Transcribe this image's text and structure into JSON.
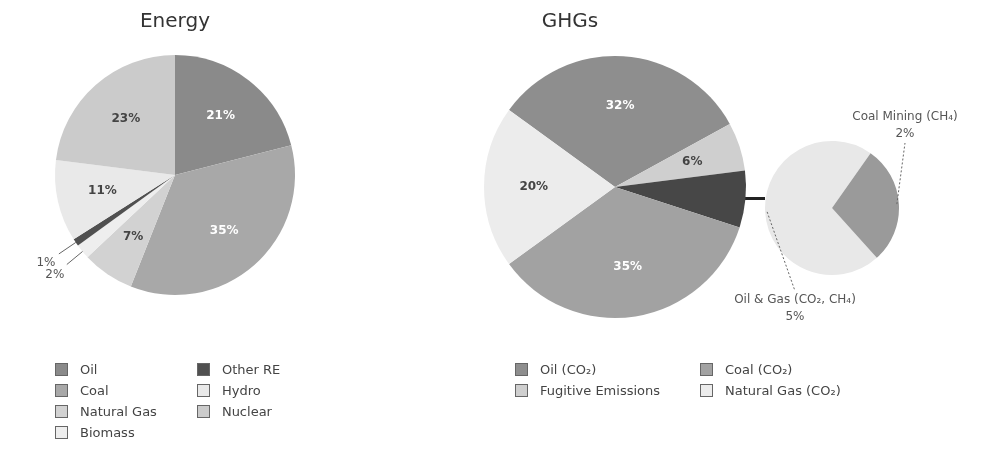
{
  "chart_data": [
    {
      "type": "pie",
      "title": "Energy",
      "categories": [
        "Oil",
        "Coal",
        "Natural Gas",
        "Biomass",
        "Other RE",
        "Hydro",
        "Nuclear"
      ],
      "values": [
        21,
        35,
        7,
        2,
        1,
        11,
        23
      ],
      "value_labels": [
        "21%",
        "35%",
        "7%",
        "2%",
        "1%",
        "11%",
        "23%"
      ],
      "colors": [
        "#8a8a8a",
        "#a8a8a8",
        "#d2d2d2",
        "#eeeeee",
        "#505050",
        "#e9e9e9",
        "#cbcbcb"
      ],
      "legend": "bottom"
    },
    {
      "type": "pie",
      "title": "GHGs",
      "categories": [
        "Oil (CO₂)",
        "Fugitive Emissions",
        null,
        "Coal (CO₂)",
        "Natural Gas (CO₂)"
      ],
      "values": [
        32,
        6,
        7,
        35,
        20
      ],
      "value_labels": [
        "32%",
        "6%",
        null,
        "35%",
        "20%"
      ],
      "colors": [
        "#8e8e8e",
        "#cfcfcf",
        "#474747",
        "#a2a2a2",
        "#ececec"
      ],
      "legend": "bottom"
    },
    {
      "type": "pie",
      "categories": [
        "Oil & Gas (CO₂, CH₄)",
        "Coal Mining (CH₄)"
      ],
      "values": [
        5,
        2
      ],
      "value_labels": [
        "5%",
        "2%"
      ],
      "colors": [
        "#e8e8e8",
        "#9a9a9a"
      ],
      "legend": false
    }
  ]
}
